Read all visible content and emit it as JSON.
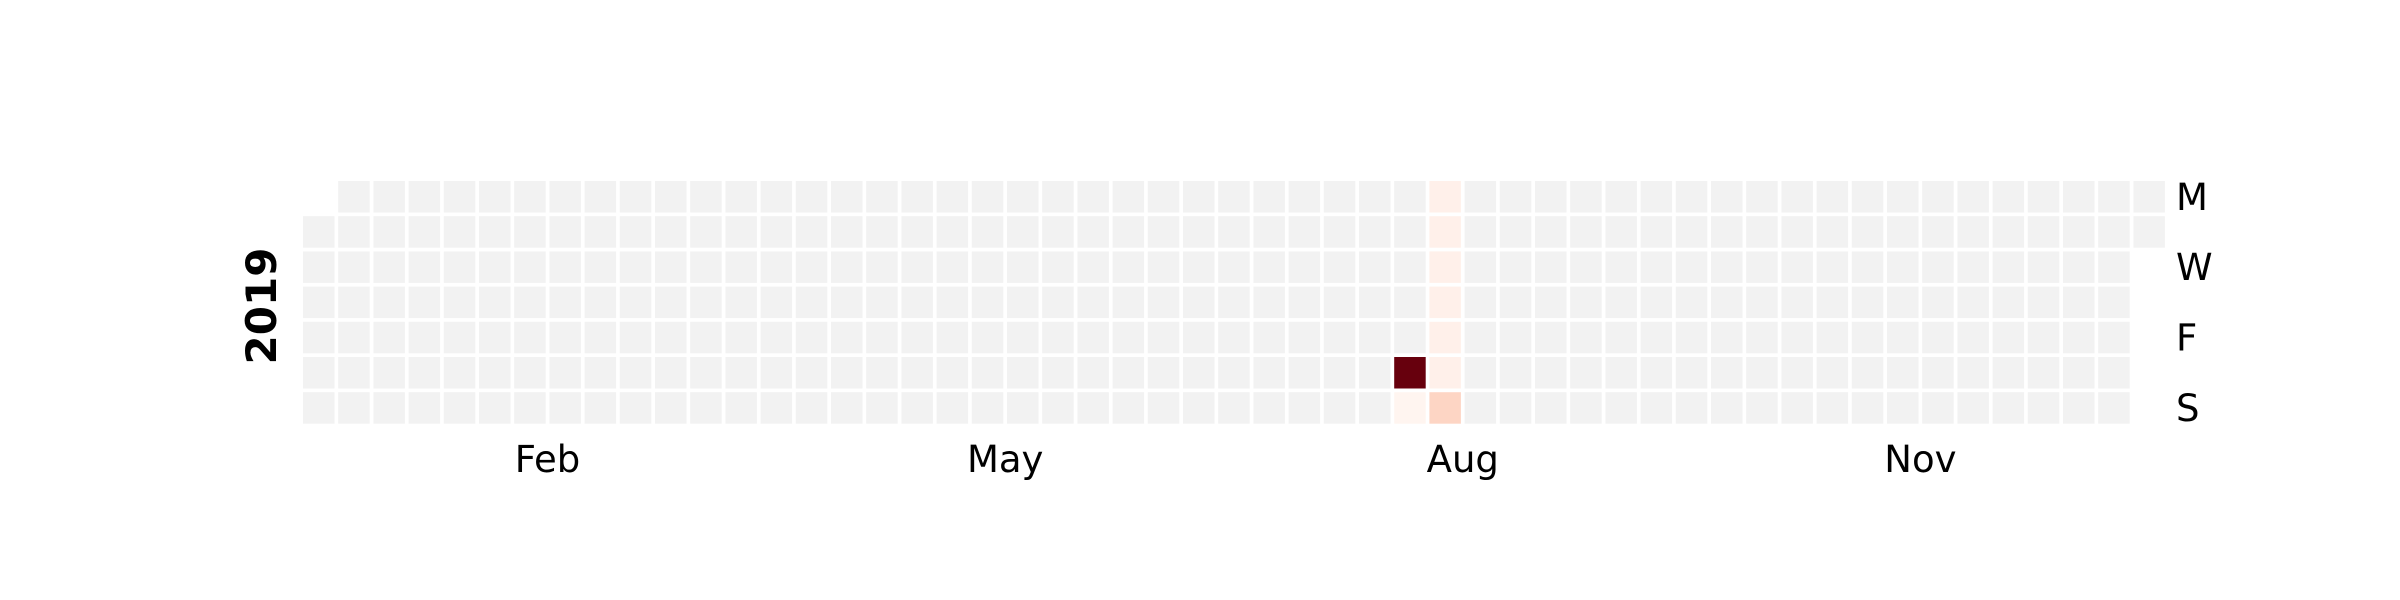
{
  "chart_data": {
    "type": "heatmap",
    "title": "",
    "xlabel": "",
    "ylabel": "",
    "year": "2019",
    "month_ticks": [
      "Feb",
      "May",
      "Aug",
      "Nov"
    ],
    "weekday_ticks": [
      "M",
      "W",
      "F",
      "S"
    ],
    "grid": false,
    "colormap": "Reds",
    "empty_color": "#f2f2f2",
    "week_columns": 53,
    "first_day_row": 1,
    "day_count": 365,
    "values": [
      {
        "date": "2019-08-10",
        "value": 1.0,
        "color": "#67000d"
      },
      {
        "date": "2019-08-11",
        "value": 0.02,
        "color": "#fff5f0"
      },
      {
        "date": "2019-08-12",
        "value": 0.04,
        "color": "#fff0ea"
      },
      {
        "date": "2019-08-13",
        "value": 0.04,
        "color": "#fff0ea"
      },
      {
        "date": "2019-08-14",
        "value": 0.04,
        "color": "#fff0ea"
      },
      {
        "date": "2019-08-15",
        "value": 0.04,
        "color": "#fff0ea"
      },
      {
        "date": "2019-08-16",
        "value": 0.04,
        "color": "#fff0ea"
      },
      {
        "date": "2019-08-17",
        "value": 0.04,
        "color": "#fff0ea"
      },
      {
        "date": "2019-08-18",
        "value": 0.12,
        "color": "#fdd5c4"
      }
    ]
  }
}
